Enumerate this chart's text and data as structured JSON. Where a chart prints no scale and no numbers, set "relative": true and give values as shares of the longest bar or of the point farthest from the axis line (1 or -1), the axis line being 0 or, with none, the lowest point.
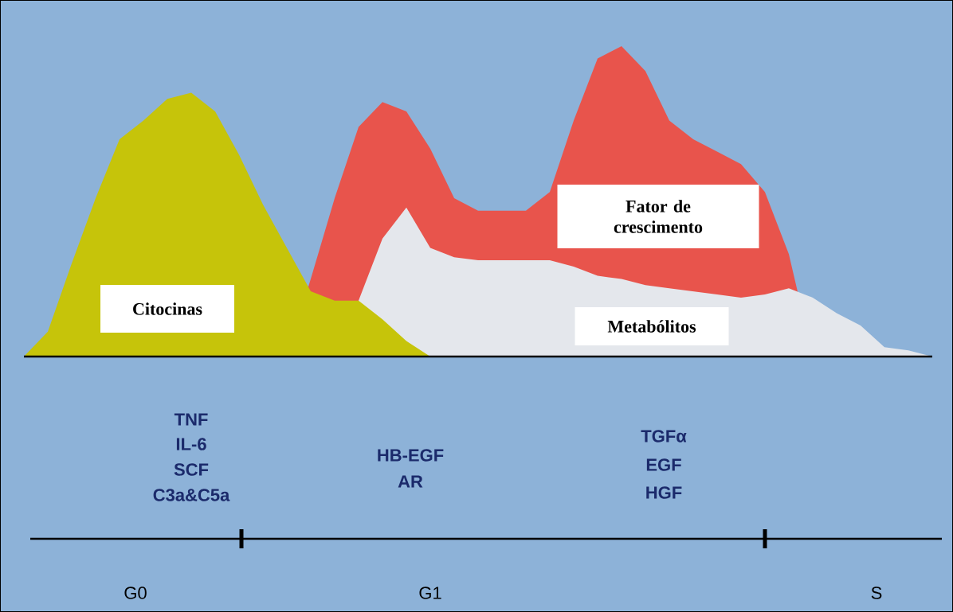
{
  "chart_data": {
    "type": "area",
    "relative": true,
    "categories": [
      null,
      null,
      null,
      null,
      null,
      null,
      null,
      null,
      null,
      null,
      null,
      null,
      null,
      null,
      null,
      null,
      null,
      null,
      null,
      null,
      null,
      null,
      null,
      null,
      null,
      null,
      null,
      null,
      null,
      null,
      null,
      null,
      null,
      null,
      null,
      null,
      null,
      null,
      null
    ],
    "series": [
      {
        "name": "Fator de crescimento",
        "color": "#e8544c",
        "values": [
          0,
          0,
          0,
          0,
          0,
          0,
          0,
          0,
          0,
          0,
          0,
          0,
          0.25,
          0.51,
          0.74,
          0.82,
          0.79,
          0.67,
          0.51,
          0.47,
          0.47,
          0.47,
          0.53,
          0.76,
          0.96,
          1.0,
          0.92,
          0.76,
          0.7,
          0.66,
          0.62,
          0.53,
          0.33,
          0,
          0,
          0,
          0,
          0,
          0
        ]
      },
      {
        "name": "Metabólitos",
        "color": "#e4e7ec",
        "values": [
          0,
          0,
          0,
          0,
          0,
          0,
          0,
          0,
          0,
          0,
          0,
          0,
          0,
          0,
          0.18,
          0.38,
          0.48,
          0.35,
          0.32,
          0.31,
          0.31,
          0.31,
          0.31,
          0.29,
          0.26,
          0.25,
          0.23,
          0.22,
          0.21,
          0.2,
          0.19,
          0.2,
          0.22,
          0.19,
          0.14,
          0.1,
          0.03,
          0.02,
          0
        ]
      },
      {
        "name": "Citocinas",
        "color": "#c6c40a",
        "values": [
          0,
          0.08,
          0.3,
          0.51,
          0.7,
          0.76,
          0.83,
          0.85,
          0.79,
          0.65,
          0.49,
          0.35,
          0.21,
          0.18,
          0.18,
          0.12,
          0.05,
          0,
          0,
          0,
          0,
          0,
          0,
          0,
          0,
          0,
          0,
          0,
          0,
          0,
          0,
          0,
          0,
          0,
          0,
          0,
          0,
          0,
          0
        ]
      }
    ],
    "annotations": [
      "TNF",
      "IL-6",
      "SCF",
      "C3a&C5a",
      "HB-EGF",
      "AR",
      "TGFα",
      "EGF",
      "HGF",
      "G0",
      "G1",
      "S"
    ]
  }
}
